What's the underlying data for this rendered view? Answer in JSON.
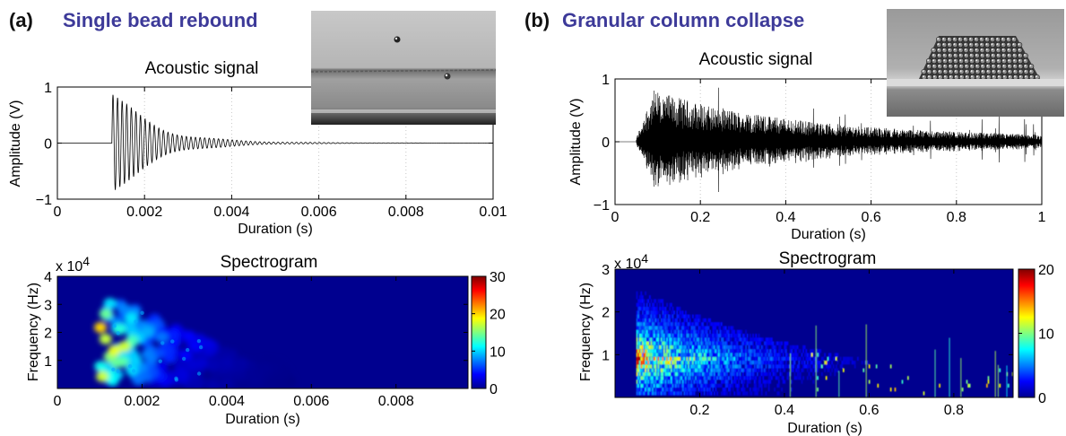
{
  "panel_a": {
    "label": "(a)",
    "title": "Single bead rebound"
  },
  "panel_b": {
    "label": "(b)",
    "title": "Granular column collapse"
  },
  "chart_data": [
    {
      "type": "line",
      "panel": "a",
      "title": "Acoustic signal",
      "xlabel": "Duration (s)",
      "ylabel": "Amplitude (V)",
      "xlim": [
        0,
        0.01
      ],
      "ylim": [
        -1,
        1
      ],
      "xticks": [
        "0",
        "0.002",
        "0.004",
        "0.006",
        "0.008",
        "0.01"
      ],
      "xtick_values": [
        0,
        0.002,
        0.004,
        0.006,
        0.008,
        0.01
      ],
      "yticks": [
        "−1",
        "0",
        "1"
      ],
      "ytick_values": [
        -1,
        0,
        1
      ],
      "grid": "vertical dotted",
      "signal": {
        "onset": 0.00125,
        "peak_amplitude": 1.0,
        "decay_end": 0.0055,
        "line_color": "#000000"
      }
    },
    {
      "type": "heatmap",
      "panel": "a",
      "title": "Spectrogram",
      "xlabel": "Duration (s)",
      "ylabel": "Frequency (Hz)",
      "y_multiplier": "x 10^4",
      "y_multiplier_base": "x 10",
      "y_multiplier_exp": "4",
      "xlim": [
        0,
        0.0097
      ],
      "ylim": [
        0,
        4
      ],
      "xticks": [
        "0",
        "0.002",
        "0.004",
        "0.006",
        "0.008"
      ],
      "xtick_values": [
        0,
        0.002,
        0.004,
        0.006,
        0.008
      ],
      "yticks": [
        "1",
        "2",
        "3",
        "4"
      ],
      "ytick_values": [
        1,
        2,
        3,
        4
      ],
      "colorbar": {
        "min": 0,
        "max": 30,
        "ticks": [
          "0",
          "10",
          "20",
          "30"
        ],
        "tick_values": [
          0,
          10,
          20,
          30
        ]
      },
      "colormap": "jet",
      "energy_region": {
        "t_start": 0.001,
        "t_end": 0.0055,
        "f_max": 3.3
      }
    },
    {
      "type": "line",
      "panel": "b",
      "title": "Acoustic signal",
      "xlabel": "Duration (s)",
      "ylabel": "Amplitude (V)",
      "xlim": [
        0,
        1
      ],
      "ylim": [
        -1,
        1
      ],
      "xticks": [
        "0",
        "0.2",
        "0.4",
        "0.6",
        "0.8",
        "1"
      ],
      "xtick_values": [
        0,
        0.2,
        0.4,
        0.6,
        0.8,
        1
      ],
      "yticks": [
        "−1",
        "0",
        "1"
      ],
      "ytick_values": [
        -1,
        0,
        1
      ],
      "grid": "vertical dotted",
      "signal": {
        "onset": 0.05,
        "peak_amplitude": 0.9,
        "decay_end": 1.0,
        "line_color": "#000000"
      }
    },
    {
      "type": "heatmap",
      "panel": "b",
      "title": "Spectrogram",
      "xlabel": "Duration (s)",
      "ylabel": "Frequency (Hz)",
      "y_multiplier": "x 10^4",
      "y_multiplier_base": "x 10",
      "y_multiplier_exp": "4",
      "xlim": [
        0.0,
        0.94
      ],
      "ylim": [
        0,
        3
      ],
      "xticks": [
        "0.2",
        "0.4",
        "0.6",
        "0.8"
      ],
      "xtick_values": [
        0.2,
        0.4,
        0.6,
        0.8
      ],
      "yticks": [
        "1",
        "2",
        "3"
      ],
      "ytick_values": [
        1,
        2,
        3
      ],
      "colorbar": {
        "min": 0,
        "max": 20,
        "ticks": [
          "0",
          "10",
          "20"
        ],
        "tick_values": [
          0,
          10,
          20
        ]
      },
      "colormap": "jet",
      "energy_region": {
        "t_start": 0.05,
        "t_end": 0.94,
        "f_max": 2.5
      }
    }
  ],
  "colors": {
    "title_color": "#3d3a99",
    "background_dark": "#00008f",
    "photo_gray": "#9a9a9a"
  }
}
